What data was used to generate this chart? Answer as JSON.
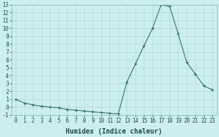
{
  "x": [
    0,
    1,
    2,
    3,
    4,
    5,
    6,
    7,
    8,
    9,
    10,
    11,
    12,
    13,
    14,
    15,
    16,
    17,
    18,
    19,
    20,
    21,
    22,
    23
  ],
  "y": [
    1.0,
    0.5,
    0.3,
    0.1,
    0.0,
    -0.1,
    -0.3,
    -0.4,
    -0.5,
    -0.6,
    -0.7,
    -0.8,
    -0.85,
    3.2,
    5.5,
    7.8,
    10.0,
    13.0,
    12.8,
    9.3,
    5.7,
    4.2,
    2.7,
    2.2
  ],
  "xlabel": "Humidex (Indice chaleur)",
  "bg_color": "#cdeeed",
  "line_color": "#2e6e65",
  "grid_color": "#b0d4d0",
  "marker": "+",
  "ylim": [
    -1,
    13
  ],
  "xlim": [
    -0.5,
    23.5
  ],
  "yticks": [
    -1,
    0,
    1,
    2,
    3,
    4,
    5,
    6,
    7,
    8,
    9,
    10,
    11,
    12,
    13
  ],
  "xticks": [
    0,
    1,
    2,
    3,
    4,
    5,
    6,
    7,
    8,
    9,
    10,
    11,
    12,
    13,
    14,
    15,
    16,
    17,
    18,
    19,
    20,
    21,
    22,
    23
  ],
  "tick_fontsize": 5.5,
  "xlabel_fontsize": 7.0
}
